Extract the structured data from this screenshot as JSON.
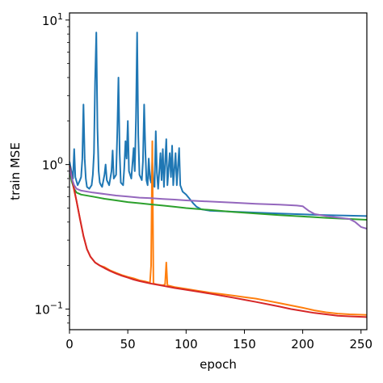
{
  "chart_data": {
    "type": "line",
    "xlabel": "epoch",
    "ylabel": "train MSE",
    "xlim": [
      0,
      255
    ],
    "ylim": [
      0.072,
      11.2
    ],
    "yscale": "log",
    "grid": false,
    "legend": "none",
    "x_ticks": [
      {
        "value": 0,
        "label": "0"
      },
      {
        "value": 50,
        "label": "50"
      },
      {
        "value": 100,
        "label": "100"
      },
      {
        "value": 150,
        "label": "150"
      },
      {
        "value": 200,
        "label": "200"
      },
      {
        "value": 250,
        "label": "250"
      }
    ],
    "y_ticks": [
      {
        "value": 0.1,
        "base": "10",
        "exp": "−1"
      },
      {
        "value": 1,
        "base": "10",
        "exp": "0"
      },
      {
        "value": 10,
        "base": "10",
        "exp": "1"
      }
    ],
    "series": [
      {
        "color": "#1f77b4",
        "points": [
          [
            0,
            1.05
          ],
          [
            3,
            0.8
          ],
          [
            4,
            1.28
          ],
          [
            5,
            0.82
          ],
          [
            7,
            0.72
          ],
          [
            9,
            0.78
          ],
          [
            10,
            0.82
          ],
          [
            11,
            1.1
          ],
          [
            12,
            2.6
          ],
          [
            13,
            1.1
          ],
          [
            14,
            0.8
          ],
          [
            15,
            0.7
          ],
          [
            17,
            0.68
          ],
          [
            19,
            0.72
          ],
          [
            20,
            0.85
          ],
          [
            21,
            1.2
          ],
          [
            22,
            3.8
          ],
          [
            23,
            8.2
          ],
          [
            24,
            1.8
          ],
          [
            25,
            0.9
          ],
          [
            26,
            0.75
          ],
          [
            27,
            0.72
          ],
          [
            28,
            0.7
          ],
          [
            30,
            0.85
          ],
          [
            31,
            1.0
          ],
          [
            32,
            0.78
          ],
          [
            34,
            0.72
          ],
          [
            36,
            0.9
          ],
          [
            37,
            1.25
          ],
          [
            38,
            0.8
          ],
          [
            40,
            0.85
          ],
          [
            41,
            1.7
          ],
          [
            42,
            4.0
          ],
          [
            43,
            1.2
          ],
          [
            44,
            0.75
          ],
          [
            46,
            0.72
          ],
          [
            47,
            0.95
          ],
          [
            48,
            1.45
          ],
          [
            49,
            1.1
          ],
          [
            50,
            2.0
          ],
          [
            51,
            0.9
          ],
          [
            53,
            0.8
          ],
          [
            55,
            1.3
          ],
          [
            56,
            0.9
          ],
          [
            57,
            2.1
          ],
          [
            58,
            8.2
          ],
          [
            59,
            1.6
          ],
          [
            60,
            0.85
          ],
          [
            62,
            0.78
          ],
          [
            63,
            1.05
          ],
          [
            64,
            2.6
          ],
          [
            65,
            1.3
          ],
          [
            66,
            0.78
          ],
          [
            67,
            0.72
          ],
          [
            68,
            1.1
          ],
          [
            69,
            0.8
          ],
          [
            70,
            0.75
          ],
          [
            71,
            1.05
          ],
          [
            72,
            0.72
          ],
          [
            73,
            0.7
          ],
          [
            74,
            1.7
          ],
          [
            75,
            0.88
          ],
          [
            76,
            0.68
          ],
          [
            78,
            1.2
          ],
          [
            79,
            0.78
          ],
          [
            80,
            1.28
          ],
          [
            81,
            0.7
          ],
          [
            83,
            1.5
          ],
          [
            84,
            0.72
          ],
          [
            86,
            1.2
          ],
          [
            87,
            0.82
          ],
          [
            88,
            1.35
          ],
          [
            89,
            0.72
          ],
          [
            91,
            1.2
          ],
          [
            92,
            0.72
          ],
          [
            94,
            1.3
          ],
          [
            95,
            0.72
          ],
          [
            97,
            0.65
          ],
          [
            100,
            0.62
          ],
          [
            103,
            0.58
          ],
          [
            106,
            0.54
          ],
          [
            109,
            0.51
          ],
          [
            113,
            0.49
          ],
          [
            120,
            0.48
          ],
          [
            140,
            0.472
          ],
          [
            160,
            0.465
          ],
          [
            180,
            0.458
          ],
          [
            200,
            0.452
          ],
          [
            220,
            0.447
          ],
          [
            240,
            0.443
          ],
          [
            255,
            0.44
          ]
        ]
      },
      {
        "color": "#ff7f0e",
        "points": [
          [
            0,
            0.96
          ],
          [
            3,
            0.72
          ],
          [
            6,
            0.56
          ],
          [
            9,
            0.42
          ],
          [
            12,
            0.32
          ],
          [
            15,
            0.26
          ],
          [
            18,
            0.23
          ],
          [
            22,
            0.21
          ],
          [
            26,
            0.2
          ],
          [
            30,
            0.195
          ],
          [
            35,
            0.185
          ],
          [
            40,
            0.178
          ],
          [
            45,
            0.172
          ],
          [
            50,
            0.167
          ],
          [
            55,
            0.163
          ],
          [
            60,
            0.158
          ],
          [
            65,
            0.155
          ],
          [
            69,
            0.152
          ],
          [
            70,
            0.2
          ],
          [
            71,
            1.45
          ],
          [
            72,
            0.15
          ],
          [
            75,
            0.148
          ],
          [
            80,
            0.146
          ],
          [
            82,
            0.148
          ],
          [
            83,
            0.21
          ],
          [
            84,
            0.146
          ],
          [
            90,
            0.142
          ],
          [
            100,
            0.138
          ],
          [
            110,
            0.134
          ],
          [
            120,
            0.13
          ],
          [
            130,
            0.127
          ],
          [
            140,
            0.124
          ],
          [
            150,
            0.121
          ],
          [
            160,
            0.118
          ],
          [
            170,
            0.114
          ],
          [
            180,
            0.11
          ],
          [
            190,
            0.106
          ],
          [
            200,
            0.102
          ],
          [
            210,
            0.098
          ],
          [
            220,
            0.095
          ],
          [
            230,
            0.093
          ],
          [
            240,
            0.092
          ],
          [
            255,
            0.091
          ]
        ]
      },
      {
        "color": "#2ca02c",
        "points": [
          [
            0,
            0.9
          ],
          [
            2,
            0.76
          ],
          [
            4,
            0.68
          ],
          [
            6,
            0.64
          ],
          [
            10,
            0.62
          ],
          [
            20,
            0.6
          ],
          [
            30,
            0.58
          ],
          [
            40,
            0.565
          ],
          [
            50,
            0.55
          ],
          [
            60,
            0.54
          ],
          [
            70,
            0.53
          ],
          [
            80,
            0.52
          ],
          [
            90,
            0.51
          ],
          [
            100,
            0.5
          ],
          [
            120,
            0.485
          ],
          [
            140,
            0.47
          ],
          [
            160,
            0.458
          ],
          [
            180,
            0.447
          ],
          [
            200,
            0.437
          ],
          [
            220,
            0.428
          ],
          [
            240,
            0.42
          ],
          [
            255,
            0.415
          ]
        ]
      },
      {
        "color": "#d62728",
        "points": [
          [
            0,
            0.98
          ],
          [
            3,
            0.74
          ],
          [
            6,
            0.56
          ],
          [
            9,
            0.42
          ],
          [
            12,
            0.32
          ],
          [
            15,
            0.26
          ],
          [
            18,
            0.23
          ],
          [
            22,
            0.21
          ],
          [
            26,
            0.2
          ],
          [
            30,
            0.192
          ],
          [
            35,
            0.183
          ],
          [
            40,
            0.176
          ],
          [
            45,
            0.17
          ],
          [
            50,
            0.165
          ],
          [
            55,
            0.16
          ],
          [
            60,
            0.156
          ],
          [
            70,
            0.15
          ],
          [
            80,
            0.145
          ],
          [
            90,
            0.14
          ],
          [
            100,
            0.136
          ],
          [
            110,
            0.132
          ],
          [
            120,
            0.128
          ],
          [
            130,
            0.124
          ],
          [
            140,
            0.12
          ],
          [
            150,
            0.116
          ],
          [
            160,
            0.112
          ],
          [
            170,
            0.108
          ],
          [
            180,
            0.104
          ],
          [
            190,
            0.1
          ],
          [
            200,
            0.097
          ],
          [
            210,
            0.094
          ],
          [
            220,
            0.092
          ],
          [
            230,
            0.09
          ],
          [
            240,
            0.089
          ],
          [
            255,
            0.088
          ]
        ]
      },
      {
        "color": "#9467bd",
        "points": [
          [
            0,
            0.95
          ],
          [
            2,
            0.8
          ],
          [
            4,
            0.72
          ],
          [
            6,
            0.68
          ],
          [
            10,
            0.66
          ],
          [
            20,
            0.64
          ],
          [
            30,
            0.625
          ],
          [
            40,
            0.61
          ],
          [
            50,
            0.6
          ],
          [
            60,
            0.59
          ],
          [
            70,
            0.585
          ],
          [
            80,
            0.578
          ],
          [
            90,
            0.572
          ],
          [
            100,
            0.565
          ],
          [
            120,
            0.555
          ],
          [
            140,
            0.545
          ],
          [
            160,
            0.535
          ],
          [
            180,
            0.528
          ],
          [
            195,
            0.52
          ],
          [
            200,
            0.515
          ],
          [
            205,
            0.48
          ],
          [
            210,
            0.455
          ],
          [
            220,
            0.44
          ],
          [
            230,
            0.43
          ],
          [
            240,
            0.42
          ],
          [
            245,
            0.4
          ],
          [
            250,
            0.37
          ],
          [
            255,
            0.36
          ]
        ]
      }
    ]
  }
}
